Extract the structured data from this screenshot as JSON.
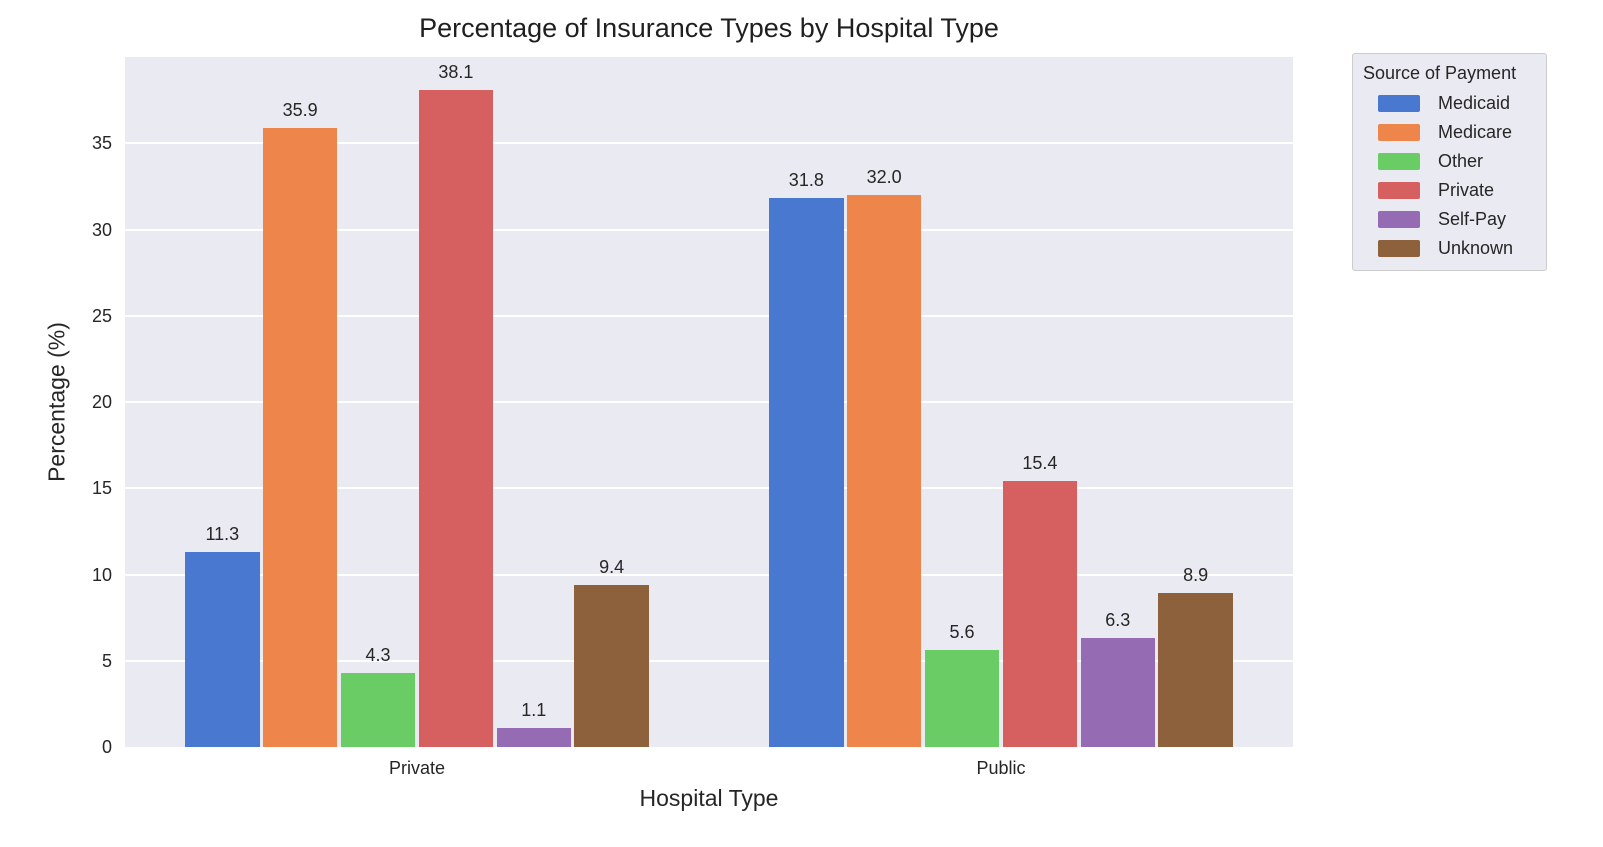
{
  "chart_data": {
    "type": "bar",
    "title": "Percentage of Insurance Types by Hospital Type",
    "xlabel": "Hospital Type",
    "ylabel": "Percentage (%)",
    "categories": [
      "Private",
      "Public"
    ],
    "series": [
      {
        "name": "Medicaid",
        "color": "#4878d0",
        "values": [
          11.3,
          31.8
        ]
      },
      {
        "name": "Medicare",
        "color": "#ee854a",
        "values": [
          35.9,
          32.0
        ]
      },
      {
        "name": "Other",
        "color": "#6acc64",
        "values": [
          4.3,
          5.6
        ]
      },
      {
        "name": "Private",
        "color": "#d65f5f",
        "values": [
          38.1,
          15.4
        ]
      },
      {
        "name": "Self-Pay",
        "color": "#956cb4",
        "values": [
          1.1,
          6.3
        ]
      },
      {
        "name": "Unknown",
        "color": "#8c613c",
        "values": [
          9.4,
          8.9
        ]
      }
    ],
    "value_labels": {
      "Private": [
        "11.3",
        "35.9",
        "4.3",
        "38.1",
        "1.1",
        "9.4"
      ],
      "Public": [
        "31.8",
        "32.0",
        "5.6",
        "15.4",
        "6.3",
        "8.9"
      ]
    },
    "yticks": [
      "0",
      "5",
      "10",
      "15",
      "20",
      "25",
      "30",
      "35"
    ],
    "ylim": [
      0,
      40
    ],
    "grid": true,
    "legend": {
      "title": "Source of Payment",
      "position": "upper-right-outside"
    },
    "colors": {
      "figure_background": "#ffffff",
      "plot_background": "#eaeaf2",
      "gridline": "#ffffff",
      "text": "#262626",
      "legend_background": "#eaeaf2",
      "legend_border": "#cccccc"
    }
  }
}
